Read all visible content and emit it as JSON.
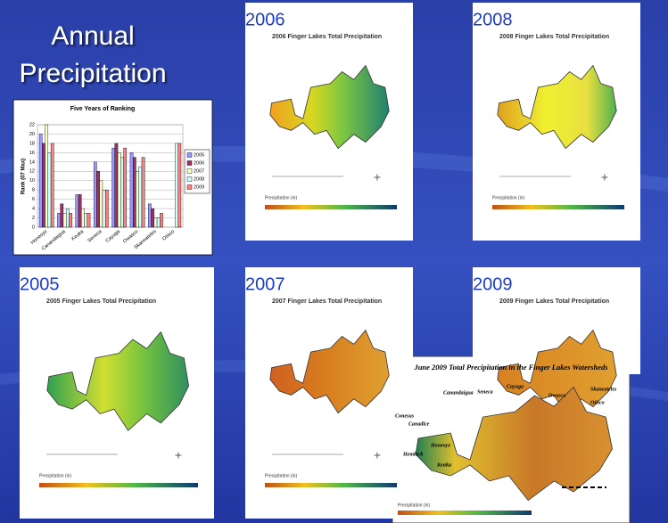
{
  "slide": {
    "title_lines": [
      "Annual",
      "Precipitation"
    ]
  },
  "chart_data": {
    "type": "bar",
    "title": "Five Years of Ranking",
    "y_label": "Rank (07 Max)",
    "categories": [
      "Honeoye",
      "Canandaigua",
      "Keuka",
      "Seneca",
      "Cayuga",
      "Owasco",
      "Skaneateles",
      "Otisco"
    ],
    "series": [
      {
        "name": "2005",
        "color": "#9999ff",
        "values": [
          20,
          3,
          7,
          14,
          17,
          16,
          5,
          0
        ]
      },
      {
        "name": "2006",
        "color": "#993366",
        "values": [
          18,
          5,
          7,
          12,
          18,
          15,
          4,
          0
        ]
      },
      {
        "name": "2007",
        "color": "#ffffcc",
        "values": [
          22,
          3,
          4,
          10,
          16,
          12,
          2,
          0
        ]
      },
      {
        "name": "2008",
        "color": "#ccffff",
        "values": [
          16,
          4,
          3,
          8,
          15,
          13,
          2,
          18
        ]
      },
      {
        "name": "2009",
        "color": "#ff8080",
        "values": [
          18,
          3,
          3,
          8,
          17,
          15,
          3,
          18
        ]
      }
    ],
    "ylim": [
      0,
      22
    ],
    "yticks": [
      0,
      2,
      4,
      6,
      8,
      10,
      12,
      14,
      16,
      18,
      20,
      22
    ],
    "grid": true
  },
  "maps": [
    {
      "year": "2006",
      "title": "2006 Finger Lakes Total Precipitation",
      "legend_label": "Precipitation (in)"
    },
    {
      "year": "2008",
      "title": "2008 Finger Lakes Total Precipitation",
      "legend_label": "Precipitation (in)"
    },
    {
      "year": "2005",
      "title": "2005 Finger Lakes Total Precipitation",
      "legend_label": "Precipitation (in)"
    },
    {
      "year": "2007",
      "title": "2007 Finger Lakes Total Precipitation",
      "legend_label": "Precipitation (in)"
    },
    {
      "year": "2009",
      "title": "2009 Finger Lakes Total Precipitation",
      "legend_label": "Precipitation (in)"
    }
  ],
  "inset": {
    "title": "June 2009 Total Precipitation in the Finger Lakes Watersheds",
    "lakes": [
      "Conesus",
      "Canadice",
      "Hemlock",
      "Honeoye",
      "Canandaigua",
      "Keuka",
      "Seneca",
      "Cayuga",
      "Owasco",
      "Skaneateles",
      "Otisco"
    ],
    "legend_label": "Precipitation (in)"
  }
}
